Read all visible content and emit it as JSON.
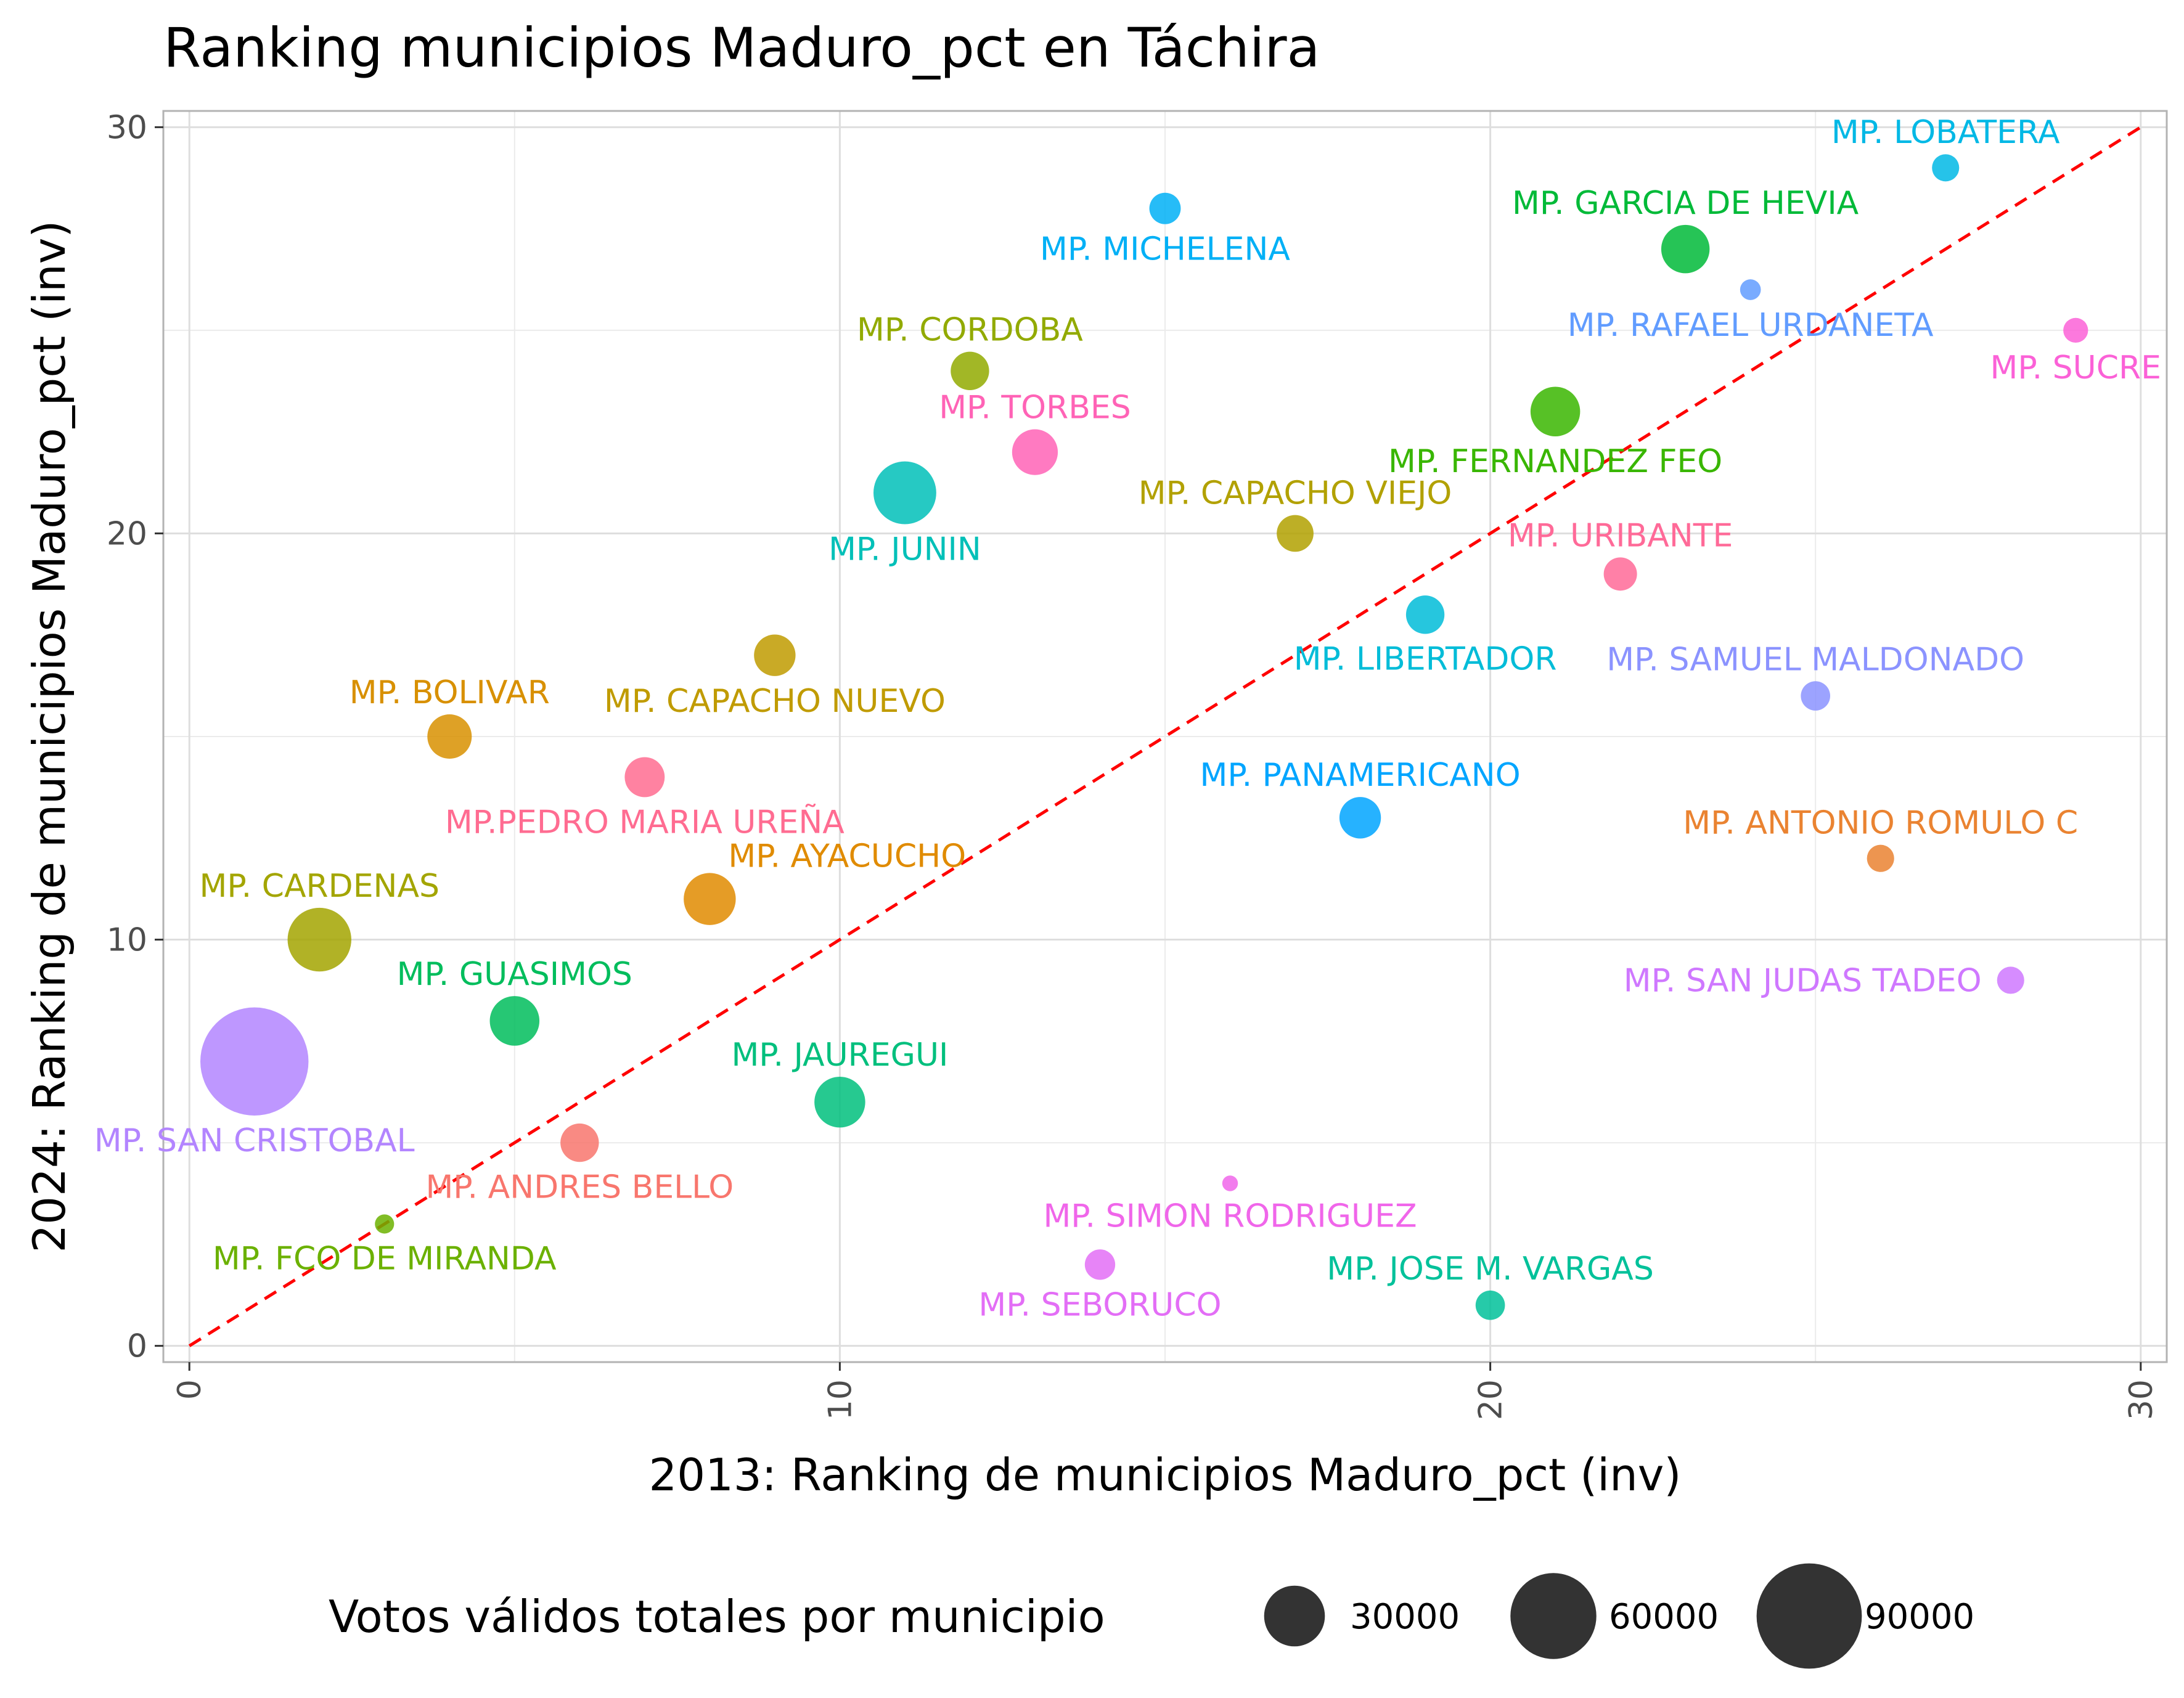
{
  "chart_data": {
    "type": "scatter",
    "title": "Ranking municipios Maduro_pct en Táchira",
    "xlabel": "2013: Ranking de municipios Maduro_pct (inv)",
    "ylabel": "2024: Ranking de municipios Maduro_pct (inv)",
    "xlim": [
      -0.4,
      30.4
    ],
    "ylim": [
      -0.4,
      30.4
    ],
    "xticks": [
      0,
      10,
      20,
      30
    ],
    "yticks": [
      0,
      10,
      20,
      30
    ],
    "grid": true,
    "reference_line": {
      "style": "dashed",
      "color": "#ff0000",
      "from": [
        0,
        0
      ],
      "to": [
        30,
        30
      ]
    },
    "legend": {
      "title": "Votos válidos totales por municipio",
      "position": "bottom",
      "entries": [
        {
          "label": "30000",
          "value": 30000
        },
        {
          "label": "60000",
          "value": 60000
        },
        {
          "label": "90000",
          "value": 90000
        }
      ]
    },
    "points": [
      {
        "label": "MP. ANDRES BELLO",
        "x": 6,
        "y": 5,
        "votes": 12000,
        "color": "#F8766D",
        "label_pos": "below"
      },
      {
        "label": "MP. ANTONIO ROMULO C",
        "x": 26,
        "y": 12,
        "votes": 6000,
        "color": "#EA8331",
        "label_pos": "above"
      },
      {
        "label": "MP. AYACUCHO",
        "x": 8,
        "y": 11,
        "votes": 22000,
        "color": "#E08B00",
        "label_pos": "above-right"
      },
      {
        "label": "MP. BOLIVAR",
        "x": 4,
        "y": 15,
        "votes": 16000,
        "color": "#D89000",
        "label_pos": "above"
      },
      {
        "label": "MP. CAPACHO NUEVO",
        "x": 9,
        "y": 17,
        "votes": 14000,
        "color": "#C09B00",
        "label_pos": "below"
      },
      {
        "label": "MP. CAPACHO VIEJO",
        "x": 17,
        "y": 20,
        "votes": 11000,
        "color": "#B2A100",
        "label_pos": "above"
      },
      {
        "label": "MP. CARDENAS",
        "x": 2,
        "y": 10,
        "votes": 33000,
        "color": "#A3A500",
        "label_pos": "above"
      },
      {
        "label": "MP. CORDOBA",
        "x": 12,
        "y": 24,
        "votes": 12000,
        "color": "#92AA00",
        "label_pos": "above"
      },
      {
        "label": "MP. FCO DE MIRANDA",
        "x": 3,
        "y": 3,
        "votes": 3000,
        "color": "#6BB100",
        "label_pos": "below"
      },
      {
        "label": "MP. FERNANDEZ FEO",
        "x": 21,
        "y": 23,
        "votes": 20000,
        "color": "#39B600",
        "label_pos": "below"
      },
      {
        "label": "MP. GARCIA DE HEVIA",
        "x": 23,
        "y": 27,
        "votes": 19000,
        "color": "#00BA38",
        "label_pos": "above"
      },
      {
        "label": "MP. GUASIMOS",
        "x": 5,
        "y": 8,
        "votes": 20000,
        "color": "#00BD5C",
        "label_pos": "above"
      },
      {
        "label": "MP. JAUREGUI",
        "x": 10,
        "y": 6,
        "votes": 21000,
        "color": "#00BF7D",
        "label_pos": "above"
      },
      {
        "label": "MP. JOSE M. VARGAS",
        "x": 20,
        "y": 1,
        "votes": 7000,
        "color": "#00C19A",
        "label_pos": "above"
      },
      {
        "label": "MP. JUNIN",
        "x": 11,
        "y": 21,
        "votes": 32000,
        "color": "#00C0B8",
        "label_pos": "below"
      },
      {
        "label": "MP. LIBERTADOR",
        "x": 19,
        "y": 18,
        "votes": 12000,
        "color": "#00BCD8",
        "label_pos": "below"
      },
      {
        "label": "MP. LOBATERA",
        "x": 27,
        "y": 29,
        "votes": 6000,
        "color": "#00B8E5",
        "label_pos": "above"
      },
      {
        "label": "MP. MICHELENA",
        "x": 15,
        "y": 28,
        "votes": 8000,
        "color": "#00B0F6",
        "label_pos": "below"
      },
      {
        "label": "MP. PANAMERICANO",
        "x": 18,
        "y": 13,
        "votes": 14000,
        "color": "#00A5FF",
        "label_pos": "above"
      },
      {
        "label": "MP. RAFAEL URDANETA",
        "x": 24,
        "y": 26,
        "votes": 3500,
        "color": "#619CFF",
        "label_pos": "below"
      },
      {
        "label": "MP. SAMUEL MALDONADO",
        "x": 25,
        "y": 16,
        "votes": 7000,
        "color": "#8B93FF",
        "label_pos": "above"
      },
      {
        "label": "MP. SAN CRISTOBAL",
        "x": 1,
        "y": 7,
        "votes": 95000,
        "color": "#B385FF",
        "label_pos": "below"
      },
      {
        "label": "MP. SAN JUDAS TADEO",
        "x": 28,
        "y": 9,
        "votes": 6000,
        "color": "#CF78FF",
        "label_pos": "left"
      },
      {
        "label": "MP. SEBORUCO",
        "x": 14,
        "y": 2,
        "votes": 7500,
        "color": "#E36EF6",
        "label_pos": "below"
      },
      {
        "label": "MP. SIMON RODRIGUEZ",
        "x": 16,
        "y": 4,
        "votes": 2000,
        "color": "#F066EA",
        "label_pos": "below"
      },
      {
        "label": "MP. SUCRE",
        "x": 29,
        "y": 25,
        "votes": 5000,
        "color": "#FB61D7",
        "label_pos": "below"
      },
      {
        "label": "MP. TORBES",
        "x": 13,
        "y": 22,
        "votes": 17000,
        "color": "#FF63B6",
        "label_pos": "above"
      },
      {
        "label": "MP. URIBANTE",
        "x": 22,
        "y": 19,
        "votes": 9000,
        "color": "#FF6A98",
        "label_pos": "above"
      },
      {
        "label": "MP.PEDRO MARIA UREÑA",
        "x": 7,
        "y": 14,
        "votes": 13000,
        "color": "#FF6C91",
        "label_pos": "below"
      }
    ]
  }
}
